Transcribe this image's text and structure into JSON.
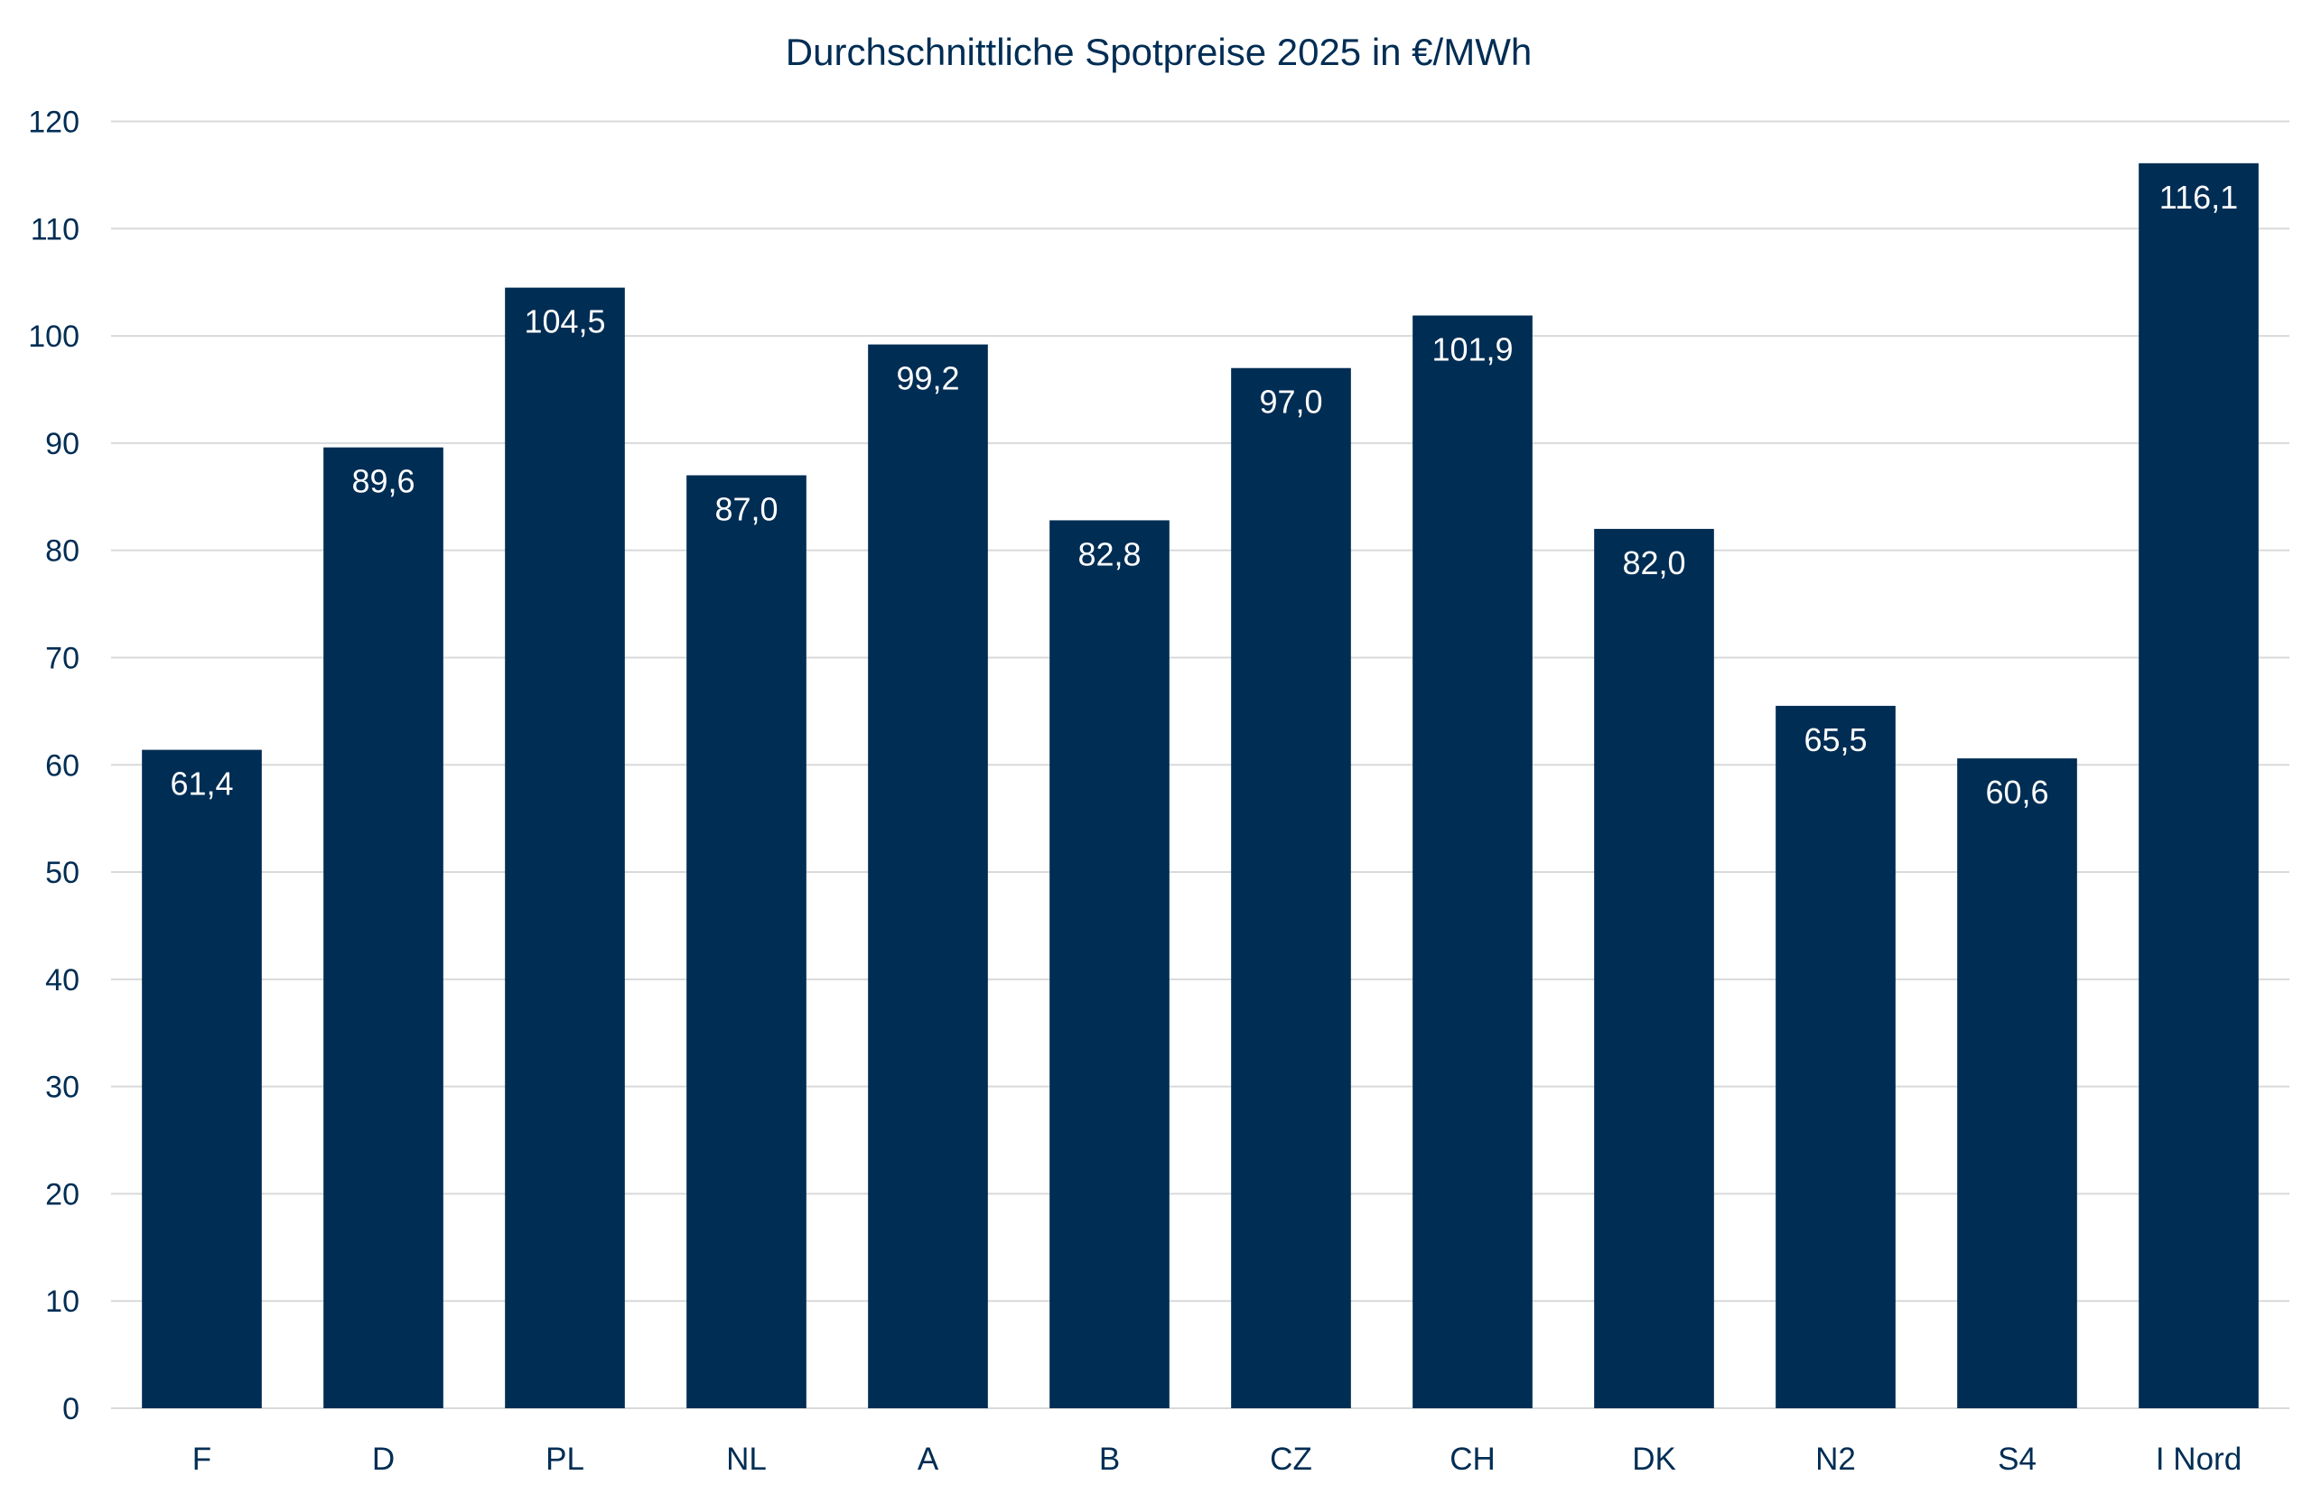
{
  "chart_data": {
    "type": "bar",
    "title": "Durchschnittliche Spotpreise 2025 in €/MWh",
    "xlabel": "",
    "ylabel": "",
    "categories": [
      "F",
      "D",
      "PL",
      "NL",
      "A",
      "B",
      "CZ",
      "CH",
      "DK",
      "N2",
      "S4",
      "I Nord"
    ],
    "values": [
      61.4,
      89.6,
      104.5,
      87.0,
      99.2,
      82.8,
      97.0,
      101.9,
      82.0,
      65.5,
      60.6,
      116.1
    ],
    "data_labels": [
      "61,4",
      "89,6",
      "104,5",
      "87,0",
      "99,2",
      "82,8",
      "97,0",
      "101,9",
      "82,0",
      "65,5",
      "60,6",
      "116,1"
    ],
    "ylim": [
      0,
      120
    ],
    "yticks": [
      "0",
      "10",
      "20",
      "30",
      "40",
      "50",
      "60",
      "70",
      "80",
      "90",
      "100",
      "110",
      "120"
    ],
    "grid": true,
    "legend": "none",
    "colors": {
      "bar": "#002d54",
      "grid": "#d9d9d9",
      "text": "#002d54",
      "label": "#ffffff"
    }
  }
}
